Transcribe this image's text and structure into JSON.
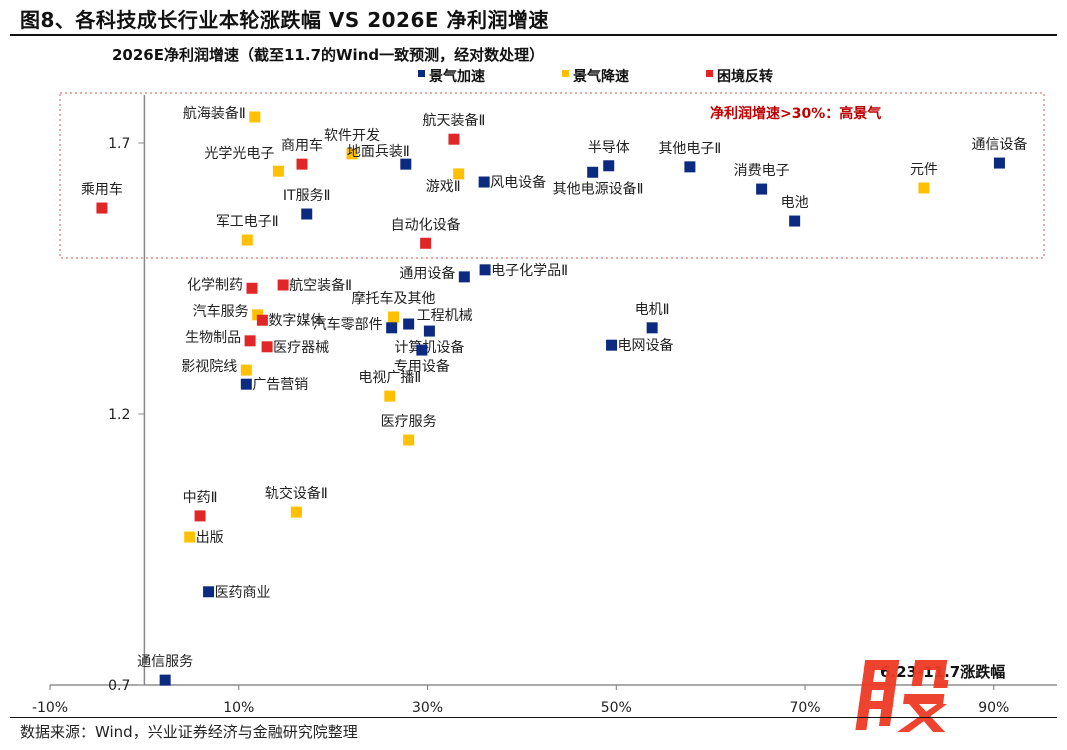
{
  "title": "图8、各科技成长行业本轮涨跌幅  VS 2026E 净利润增速",
  "source": "数据来源：Wind，兴业证券经济与金融研究院整理",
  "watermark": "股",
  "chart_data": {
    "type": "scatter",
    "ylabel": "2026E净利润增速（截至11.7的Wind一致预测，经对数处理）",
    "xlabel": "6.23-11.7涨跌幅",
    "x_ticks": [
      "-10%",
      "10%",
      "30%",
      "50%",
      "70%",
      "90%"
    ],
    "x_tick_values": [
      -10,
      10,
      30,
      50,
      70,
      90
    ],
    "y_ticks": [
      "0.7",
      "1.2",
      "1.7"
    ],
    "y_tick_values": [
      0.7,
      1.2,
      1.7
    ],
    "xlim": [
      -10,
      90
    ],
    "ylim": [
      0.7,
      1.78
    ],
    "grid": false,
    "legend_position": "top",
    "annotation": "净利润增速>30%：高景气",
    "annotation_color": "#c00000",
    "categories": [
      {
        "name": "景气加速",
        "color": "#0c2a80"
      },
      {
        "name": "景气降速",
        "color": "#ffc000"
      },
      {
        "name": "困境反转",
        "color": "#e02626"
      }
    ],
    "points": [
      {
        "label": "乘用车",
        "x": -4.5,
        "y": 1.58,
        "category": 2
      },
      {
        "label": "航海装备Ⅱ",
        "x": 11.7,
        "y": 1.748,
        "category": 1
      },
      {
        "label": "光学光电子",
        "x": 14.2,
        "y": 1.648,
        "category": 1
      },
      {
        "label": "商用车",
        "x": 16.7,
        "y": 1.661,
        "category": 2
      },
      {
        "label": "软件开发",
        "x": 22.0,
        "y": 1.68,
        "category": 1
      },
      {
        "label": "地面兵装Ⅱ",
        "x": 27.7,
        "y": 1.661,
        "category": 0
      },
      {
        "label": "航天装备Ⅱ",
        "x": 32.8,
        "y": 1.707,
        "category": 2
      },
      {
        "label": "游戏Ⅱ",
        "x": 33.3,
        "y": 1.643,
        "category": 1
      },
      {
        "label": "风电设备",
        "x": 36.0,
        "y": 1.628,
        "category": 0
      },
      {
        "label": "IT服务Ⅱ",
        "x": 17.2,
        "y": 1.569,
        "category": 0
      },
      {
        "label": "军工电子Ⅱ",
        "x": 10.9,
        "y": 1.521,
        "category": 1
      },
      {
        "label": "自动化设备",
        "x": 29.8,
        "y": 1.515,
        "category": 2
      },
      {
        "label": "半导体",
        "x": 49.2,
        "y": 1.658,
        "category": 0
      },
      {
        "label": "其他电源设备Ⅱ",
        "x": 47.5,
        "y": 1.646,
        "category": 0
      },
      {
        "label": "其他电子Ⅱ",
        "x": 57.8,
        "y": 1.656,
        "category": 0
      },
      {
        "label": "消费电子",
        "x": 65.4,
        "y": 1.615,
        "category": 0
      },
      {
        "label": "电池",
        "x": 68.9,
        "y": 1.556,
        "category": 0
      },
      {
        "label": "元件",
        "x": 82.6,
        "y": 1.617,
        "category": 1
      },
      {
        "label": "通信设备",
        "x": 90.6,
        "y": 1.663,
        "category": 0
      },
      {
        "label": "通用设备",
        "x": 33.9,
        "y": 1.453,
        "category": 0
      },
      {
        "label": "电子化学品Ⅱ",
        "x": 36.1,
        "y": 1.466,
        "category": 0
      },
      {
        "label": "化学制药",
        "x": 11.4,
        "y": 1.432,
        "category": 2
      },
      {
        "label": "航空装备Ⅱ",
        "x": 14.7,
        "y": 1.438,
        "category": 2
      },
      {
        "label": "汽车服务",
        "x": 12.0,
        "y": 1.383,
        "category": 1
      },
      {
        "label": "数字媒体",
        "x": 12.5,
        "y": 1.373,
        "category": 2
      },
      {
        "label": "摩托车及其他",
        "x": 26.4,
        "y": 1.379,
        "category": 1
      },
      {
        "label": "工程机械",
        "x": 28.0,
        "y": 1.366,
        "category": 0
      },
      {
        "label": "汽车零部件",
        "x": 26.2,
        "y": 1.359,
        "category": 0
      },
      {
        "label": "计算机设备",
        "x": 30.2,
        "y": 1.353,
        "category": 0
      },
      {
        "label": "专用设备",
        "x": 29.4,
        "y": 1.318,
        "category": 0
      },
      {
        "label": "生物制品",
        "x": 11.2,
        "y": 1.335,
        "category": 2
      },
      {
        "label": "医疗器械",
        "x": 13.0,
        "y": 1.324,
        "category": 2
      },
      {
        "label": "影视院线",
        "x": 10.8,
        "y": 1.281,
        "category": 1
      },
      {
        "label": "广告营销",
        "x": 10.8,
        "y": 1.255,
        "category": 0
      },
      {
        "label": "电视广播Ⅱ",
        "x": 26.0,
        "y": 1.233,
        "category": 1
      },
      {
        "label": "医疗服务",
        "x": 28.0,
        "y": 1.152,
        "category": 1
      },
      {
        "label": "电机Ⅱ",
        "x": 53.8,
        "y": 1.359,
        "category": 0
      },
      {
        "label": "电网设备",
        "x": 49.5,
        "y": 1.327,
        "category": 0
      },
      {
        "label": "中药Ⅱ",
        "x": 5.9,
        "y": 1.012,
        "category": 2
      },
      {
        "label": "轨交设备Ⅱ",
        "x": 16.1,
        "y": 1.019,
        "category": 1
      },
      {
        "label": "出版",
        "x": 4.8,
        "y": 0.973,
        "category": 1
      },
      {
        "label": "医药商业",
        "x": 6.8,
        "y": 0.872,
        "category": 0
      },
      {
        "label": "通信服务",
        "x": 2.2,
        "y": 0.709,
        "category": 0
      }
    ]
  }
}
